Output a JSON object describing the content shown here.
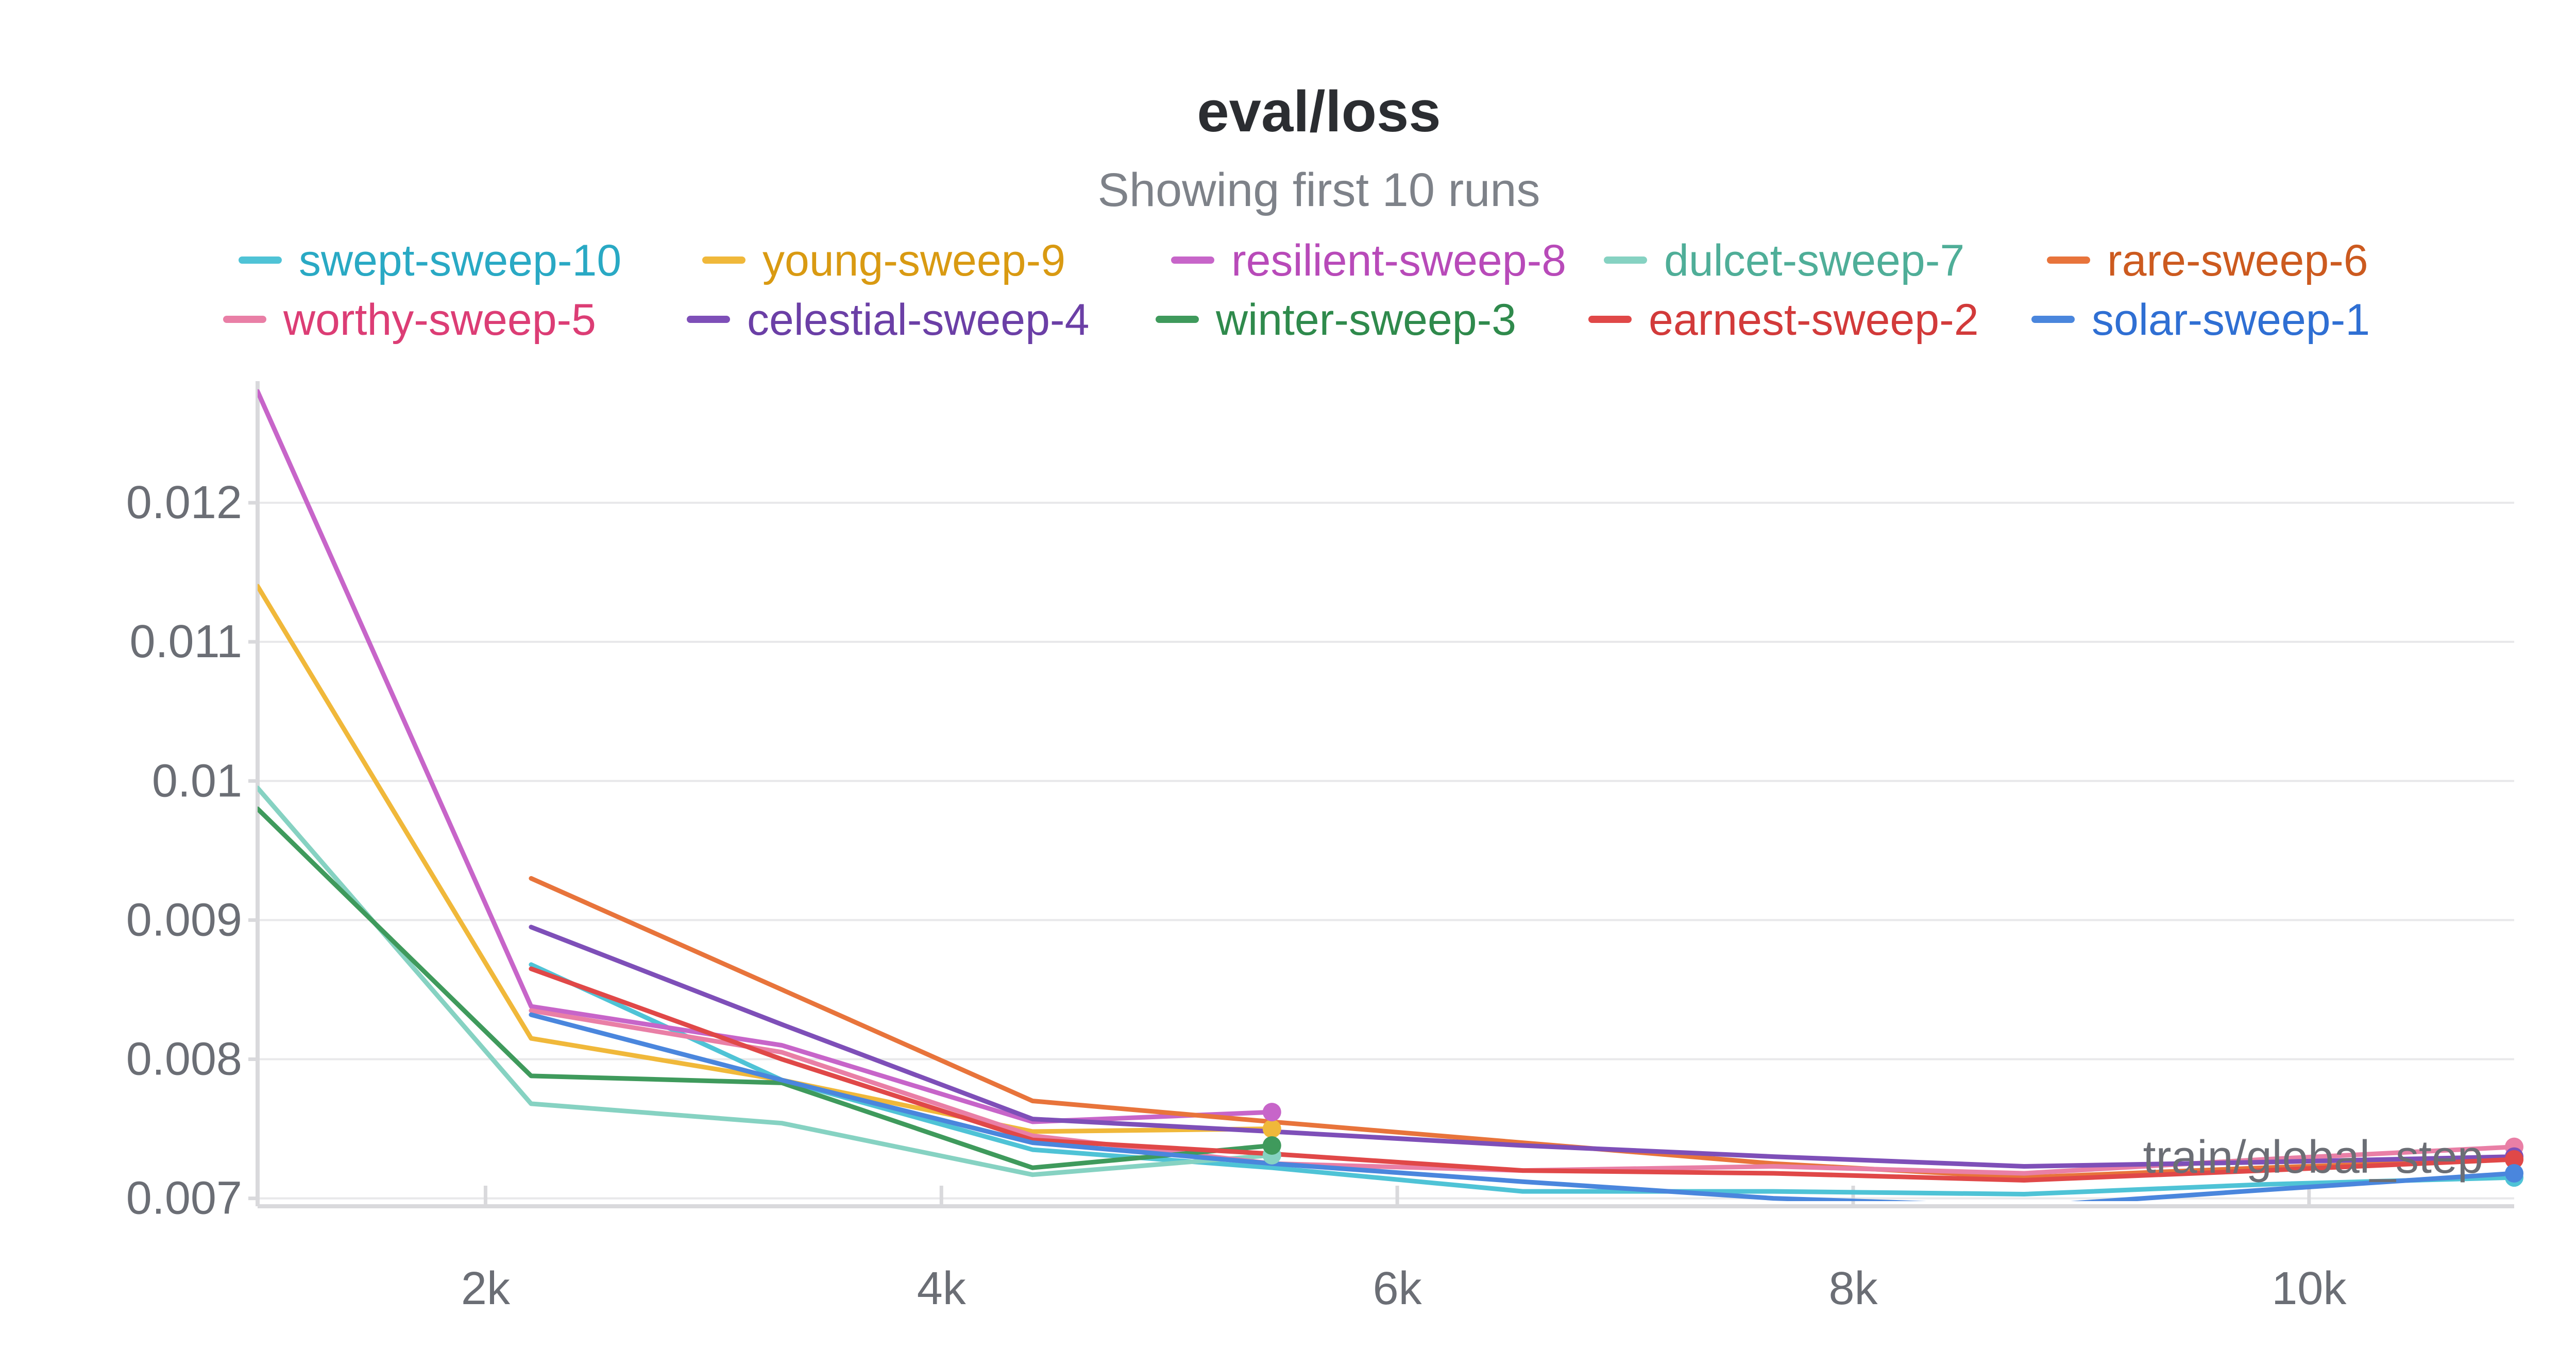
{
  "chart_data": {
    "type": "line",
    "title": "eval/loss",
    "subtitle": "Showing first 10 runs",
    "xlabel": "train/global_step",
    "ylabel": "",
    "xlim": [
      1000,
      10900
    ],
    "ylim": [
      0.00698,
      0.0128
    ],
    "x_ticks": [
      {
        "value": 2000,
        "label": "2k"
      },
      {
        "value": 4000,
        "label": "4k"
      },
      {
        "value": 6000,
        "label": "6k"
      },
      {
        "value": 8000,
        "label": "8k"
      },
      {
        "value": 10000,
        "label": "10k"
      }
    ],
    "y_ticks": [
      {
        "value": 0.007,
        "label": "0.007"
      },
      {
        "value": 0.008,
        "label": "0.008"
      },
      {
        "value": 0.009,
        "label": "0.009"
      },
      {
        "value": 0.01,
        "label": "0.01"
      },
      {
        "value": 0.011,
        "label": "0.011"
      },
      {
        "value": 0.012,
        "label": "0.012"
      }
    ],
    "grid": true,
    "legend_position": "top",
    "series": [
      {
        "name": "swept-sweep-10",
        "color": "#4fc3d6",
        "text_color": "#29a9c4",
        "points": [
          [
            2200,
            0.00868
          ],
          [
            3300,
            0.00785
          ],
          [
            4400,
            0.00735
          ],
          [
            5450,
            0.00722
          ],
          [
            6550,
            0.00705
          ],
          [
            7650,
            0.00705
          ],
          [
            8750,
            0.00703
          ],
          [
            9800,
            0.0071
          ],
          [
            10900,
            0.00715
          ]
        ],
        "end_marker": true
      },
      {
        "name": "young-sweep-9",
        "color": "#f0b83a",
        "text_color": "#d99a12",
        "points": [
          [
            1000,
            0.0114
          ],
          [
            2200,
            0.00815
          ],
          [
            3300,
            0.00785
          ],
          [
            4400,
            0.00748
          ],
          [
            5450,
            0.0075
          ]
        ],
        "end_marker": true
      },
      {
        "name": "resilient-sweep-8",
        "color": "#c765c9",
        "text_color": "#b84ab9",
        "points": [
          [
            1000,
            0.0128
          ],
          [
            2200,
            0.00838
          ],
          [
            3300,
            0.0081
          ],
          [
            4400,
            0.00755
          ],
          [
            5450,
            0.00762
          ]
        ],
        "end_marker": true
      },
      {
        "name": "dulcet-sweep-7",
        "color": "#86d2c2",
        "text_color": "#4fae98",
        "points": [
          [
            1000,
            0.00995
          ],
          [
            2200,
            0.00768
          ],
          [
            3300,
            0.00754
          ],
          [
            4400,
            0.00717
          ],
          [
            5450,
            0.00731
          ]
        ],
        "end_marker": true
      },
      {
        "name": "rare-sweep-6",
        "color": "#e8743b",
        "text_color": "#cc5a1f",
        "points": [
          [
            2200,
            0.0093
          ],
          [
            3300,
            0.0085
          ],
          [
            4400,
            0.0077
          ],
          [
            5450,
            0.00755
          ],
          [
            6550,
            0.0074
          ],
          [
            7650,
            0.00725
          ],
          [
            8750,
            0.00715
          ],
          [
            9800,
            0.00722
          ],
          [
            10900,
            0.00728
          ]
        ],
        "end_marker": true
      },
      {
        "name": "worthy-sweep-5",
        "color": "#e97fa6",
        "text_color": "#dc3d75",
        "points": [
          [
            2200,
            0.00835
          ],
          [
            3300,
            0.00805
          ],
          [
            4400,
            0.00745
          ],
          [
            5450,
            0.00725
          ],
          [
            6550,
            0.0072
          ],
          [
            7650,
            0.00723
          ],
          [
            8750,
            0.00718
          ],
          [
            9800,
            0.00728
          ],
          [
            10900,
            0.00737
          ]
        ],
        "end_marker": true
      },
      {
        "name": "celestial-sweep-4",
        "color": "#7e4fb8",
        "text_color": "#6b3fa6",
        "points": [
          [
            2200,
            0.00895
          ],
          [
            3300,
            0.00825
          ],
          [
            4400,
            0.00757
          ],
          [
            5450,
            0.00748
          ],
          [
            6550,
            0.00738
          ],
          [
            7650,
            0.0073
          ],
          [
            8750,
            0.00723
          ],
          [
            9800,
            0.00726
          ],
          [
            10900,
            0.0073
          ]
        ],
        "end_marker": true
      },
      {
        "name": "winter-sweep-3",
        "color": "#3f9a5c",
        "text_color": "#2f8a4c",
        "points": [
          [
            1000,
            0.0098
          ],
          [
            2200,
            0.00788
          ],
          [
            3300,
            0.00783
          ],
          [
            4400,
            0.00722
          ],
          [
            5450,
            0.00738
          ]
        ],
        "end_marker": true
      },
      {
        "name": "earnest-sweep-2",
        "color": "#e04848",
        "text_color": "#d23a3a",
        "points": [
          [
            2200,
            0.00865
          ],
          [
            3300,
            0.008
          ],
          [
            4400,
            0.00742
          ],
          [
            5450,
            0.00732
          ],
          [
            6550,
            0.0072
          ],
          [
            7650,
            0.00718
          ],
          [
            8750,
            0.00713
          ],
          [
            9800,
            0.0072
          ],
          [
            10900,
            0.00728
          ]
        ],
        "end_marker": true
      },
      {
        "name": "solar-sweep-1",
        "color": "#4a86dd",
        "text_color": "#2f6fd3",
        "points": [
          [
            2200,
            0.00832
          ],
          [
            3300,
            0.00785
          ],
          [
            4400,
            0.0074
          ],
          [
            5450,
            0.00725
          ],
          [
            6550,
            0.00712
          ],
          [
            7650,
            0.007
          ],
          [
            8750,
            0.00694
          ],
          [
            9800,
            0.00706
          ],
          [
            10900,
            0.00718
          ]
        ],
        "end_marker": true
      }
    ]
  }
}
